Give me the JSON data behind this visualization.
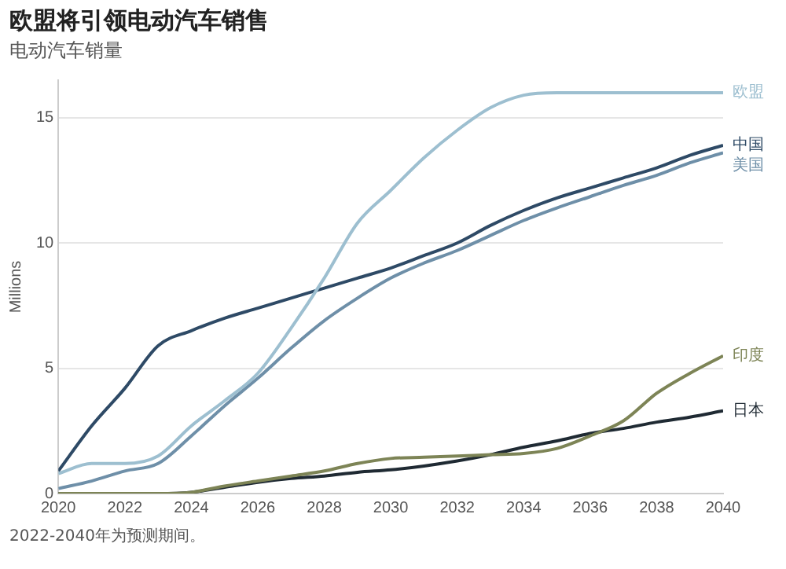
{
  "chart_data": {
    "type": "line",
    "title": "欧盟将引领电动汽车销售",
    "subtitle": "电动汽车销量",
    "ylabel": "Millions",
    "x": [
      2020,
      2021,
      2022,
      2023,
      2024,
      2025,
      2026,
      2027,
      2028,
      2029,
      2030,
      2031,
      2032,
      2033,
      2034,
      2035,
      2036,
      2037,
      2038,
      2039,
      2040
    ],
    "xlim": [
      2020,
      2040
    ],
    "xticks": [
      2020,
      2022,
      2024,
      2026,
      2028,
      2030,
      2032,
      2034,
      2036,
      2038,
      2040
    ],
    "ylim": [
      0,
      16.5
    ],
    "yticks": [
      0,
      5,
      10,
      15
    ],
    "grid": "y",
    "legend": false,
    "marker": "none",
    "line_style": "solid",
    "series": [
      {
        "name": "欧盟",
        "color": "#9dbfd0",
        "values": [
          0.8,
          1.2,
          1.2,
          1.5,
          2.7,
          3.7,
          4.8,
          6.6,
          8.6,
          10.8,
          12.1,
          13.4,
          14.5,
          15.4,
          15.9,
          16.0,
          16.0,
          16.0,
          16.0,
          16.0,
          16.0
        ]
      },
      {
        "name": "中国",
        "color": "#2e4a66",
        "values": [
          0.9,
          2.7,
          4.2,
          5.9,
          6.5,
          7.0,
          7.4,
          7.8,
          8.2,
          8.6,
          9.0,
          9.5,
          10.0,
          10.7,
          11.3,
          11.8,
          12.2,
          12.6,
          13.0,
          13.5,
          13.9
        ]
      },
      {
        "name": "美国",
        "color": "#6e8fa8",
        "values": [
          0.2,
          0.5,
          0.9,
          1.2,
          2.3,
          3.5,
          4.6,
          5.8,
          6.9,
          7.8,
          8.6,
          9.2,
          9.7,
          10.3,
          10.9,
          11.4,
          11.85,
          12.3,
          12.7,
          13.2,
          13.6
        ]
      },
      {
        "name": "印度",
        "color": "#7d8456",
        "values": [
          0,
          0,
          0,
          0,
          0.05,
          0.3,
          0.5,
          0.7,
          0.9,
          1.2,
          1.4,
          1.45,
          1.5,
          1.55,
          1.6,
          1.8,
          2.3,
          2.9,
          4.0,
          4.8,
          5.5
        ]
      },
      {
        "name": "日本",
        "color": "#1f2a33",
        "values": [
          0,
          0,
          0,
          0,
          0.05,
          0.25,
          0.45,
          0.6,
          0.7,
          0.85,
          0.95,
          1.1,
          1.3,
          1.55,
          1.85,
          2.1,
          2.4,
          2.6,
          2.85,
          3.05,
          3.3
        ]
      }
    ],
    "annotations": [
      "2022-2040年为预测期间。"
    ]
  }
}
